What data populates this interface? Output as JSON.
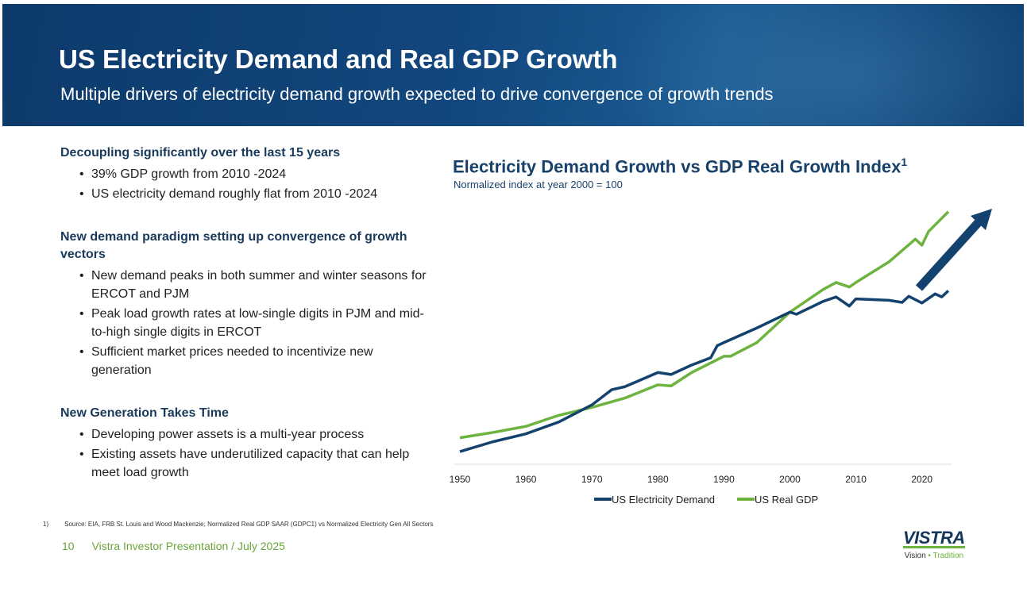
{
  "header": {
    "title": "US Electricity Demand and Real GDP Growth",
    "subtitle": "Multiple drivers of electricity demand growth expected to drive convergence of growth trends"
  },
  "sections": [
    {
      "heading": "Decoupling significantly over the last 15 years",
      "bullets": [
        "39% GDP growth from 2010 -2024",
        "US electricity demand roughly flat from 2010 -2024"
      ]
    },
    {
      "heading": "New demand paradigm setting up convergence of growth vectors",
      "bullets": [
        "New demand peaks in both summer and winter seasons for ERCOT and PJM",
        "Peak load growth rates at low-single digits in PJM and mid-to-high single digits in ERCOT",
        "Sufficient market prices needed to incentivize new generation"
      ]
    },
    {
      "heading": "New Generation Takes Time",
      "bullets": [
        "Developing power assets is a multi-year process",
        "Existing assets have underutilized capacity that can help meet load growth"
      ]
    }
  ],
  "chart_data": {
    "type": "line",
    "title": "Electricity Demand Growth vs GDP Real Growth Index",
    "title_sup": "1",
    "subtitle": "Normalized index at year 2000 = 100",
    "xlabel": "",
    "ylabel": "",
    "xlim": [
      1950,
      2024
    ],
    "ylim": [
      0,
      175
    ],
    "xticks": [
      "1950",
      "1960",
      "1970",
      "1980",
      "1990",
      "2000",
      "2010",
      "2020"
    ],
    "grid": false,
    "legend": "bottom",
    "annotation": "upward-arrow",
    "series": [
      {
        "name": "US Electricity Demand",
        "color": "#14426e",
        "x": [
          1950,
          1955,
          1960,
          1965,
          1970,
          1973,
          1975,
          1980,
          1982,
          1985,
          1988,
          1989,
          1990,
          1995,
          2000,
          2001,
          2005,
          2007,
          2009,
          2010,
          2015,
          2017,
          2018,
          2020,
          2022,
          2023,
          2024
        ],
        "y": [
          8.3,
          14.8,
          20,
          27.8,
          39,
          49,
          51,
          60.3,
          59,
          65,
          70,
          78,
          80,
          89.6,
          100,
          98.6,
          107,
          110,
          104,
          108.7,
          107.8,
          106.4,
          110.4,
          106,
          112,
          110,
          114
        ]
      },
      {
        "name": "US Real GDP",
        "color": "#6db33f",
        "x": [
          1950,
          1955,
          1960,
          1965,
          1970,
          1975,
          1980,
          1982,
          1985,
          1990,
          1991,
          1995,
          2000,
          2005,
          2007,
          2009,
          2010,
          2015,
          2019,
          2020,
          2021,
          2024
        ],
        "y": [
          17.4,
          20.9,
          24.9,
          32.2,
          37.4,
          43.5,
          52.2,
          51.5,
          60,
          71,
          71,
          80,
          100,
          114.8,
          119.5,
          116.5,
          119.5,
          133,
          148,
          144,
          153,
          166
        ]
      }
    ]
  },
  "footnote": {
    "num": "1)",
    "text": "Source: EIA, FRB St. Louis and Wood Mackenzie; Normalized Real GDP SAAR (GDPC1) vs Normalized Electricity Gen All Sectors"
  },
  "footer": {
    "page": "10",
    "label": "Vistra Investor Presentation / July 2025"
  },
  "logo": {
    "name": "VISTRA",
    "tag1": "Vision",
    "sep": " • ",
    "tag2": "Tradition"
  },
  "colors": {
    "navy": "#14426e",
    "green": "#6db33f"
  }
}
